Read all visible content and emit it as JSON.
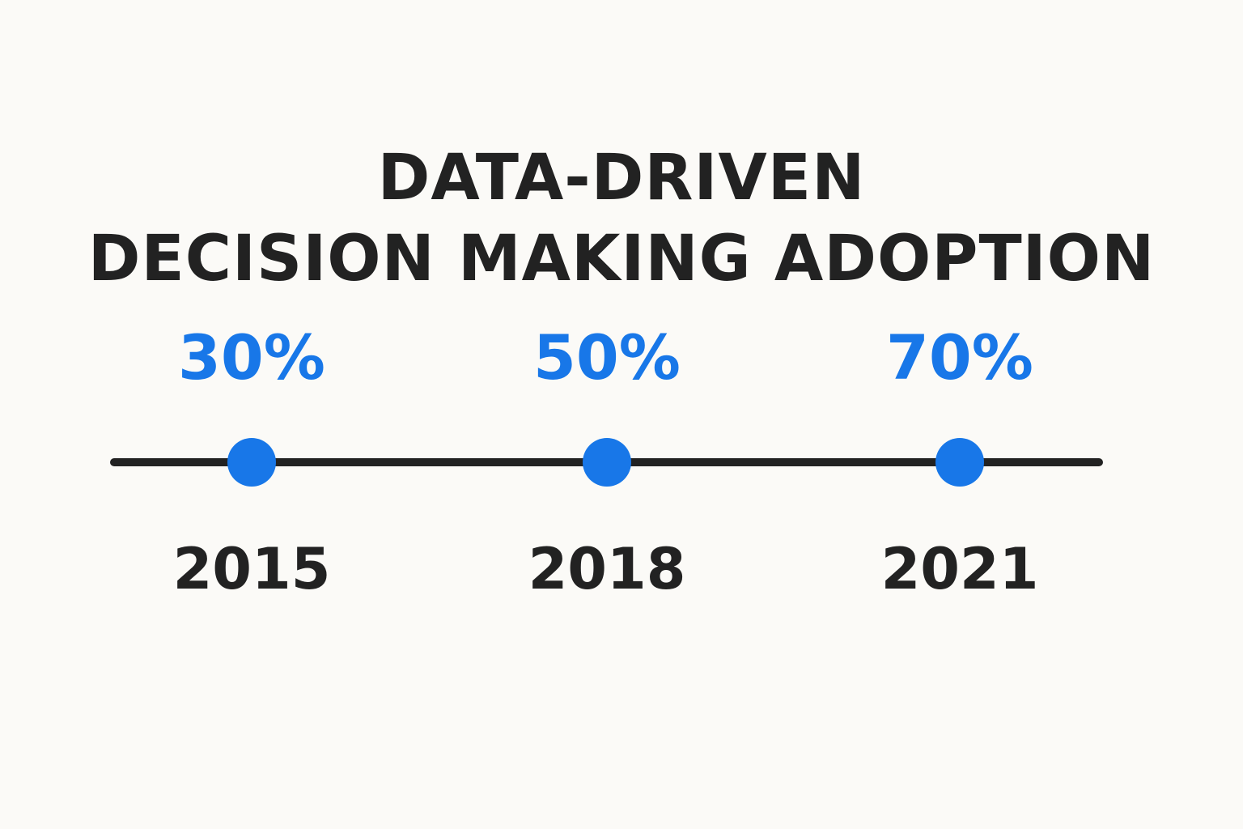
{
  "chart_data": {
    "type": "line",
    "title_lines": [
      "DATA-DRIVEN",
      "DECISION MAKING ADOPTION"
    ],
    "categories": [
      "2015",
      "2018",
      "2021"
    ],
    "values": [
      30,
      50,
      70
    ],
    "value_labels": [
      "30%",
      "50%",
      "70%"
    ],
    "xlabel": "",
    "ylabel": "",
    "grid": false,
    "legend": "none"
  },
  "colors": {
    "background": "#fbfaf7",
    "text": "#222222",
    "accent": "#1877e8",
    "axis": "#222222"
  }
}
